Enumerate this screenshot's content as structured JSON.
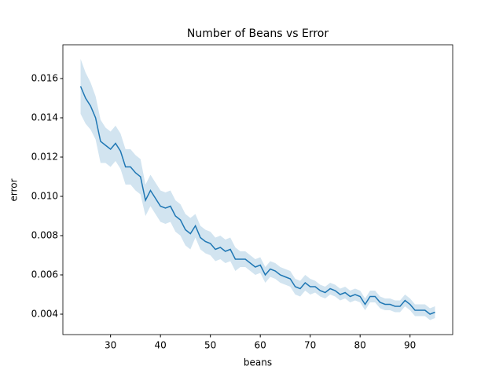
{
  "chart_data": {
    "type": "line",
    "title": "Number of Beans vs Error",
    "xlabel": "beans",
    "ylabel": "error",
    "x": [
      24,
      25,
      26,
      27,
      28,
      29,
      30,
      31,
      32,
      33,
      34,
      35,
      36,
      37,
      38,
      39,
      40,
      41,
      42,
      43,
      44,
      45,
      46,
      47,
      48,
      49,
      50,
      51,
      52,
      53,
      54,
      55,
      56,
      57,
      58,
      59,
      60,
      61,
      62,
      63,
      64,
      65,
      66,
      67,
      68,
      69,
      70,
      71,
      72,
      73,
      74,
      75,
      76,
      77,
      78,
      79,
      80,
      81,
      82,
      83,
      84,
      85,
      86,
      87,
      88,
      89,
      90,
      91,
      92,
      93,
      94,
      95
    ],
    "series": [
      {
        "color": "#1f77b4",
        "band_color": "#1f77b4",
        "values": [
          0.0156,
          0.015,
          0.0146,
          0.014,
          0.0128,
          0.0126,
          0.0124,
          0.0127,
          0.0123,
          0.0115,
          0.0115,
          0.0112,
          0.011,
          0.0098,
          0.0103,
          0.0099,
          0.0095,
          0.0094,
          0.0095,
          0.009,
          0.0088,
          0.0083,
          0.0081,
          0.0085,
          0.0079,
          0.0077,
          0.0076,
          0.0073,
          0.0074,
          0.0072,
          0.0073,
          0.0068,
          0.0068,
          0.0068,
          0.0066,
          0.0064,
          0.0065,
          0.006,
          0.0063,
          0.0062,
          0.006,
          0.0059,
          0.0058,
          0.0054,
          0.0053,
          0.0056,
          0.0054,
          0.0054,
          0.0052,
          0.0051,
          0.0053,
          0.0052,
          0.005,
          0.0051,
          0.0049,
          0.005,
          0.0049,
          0.0045,
          0.0049,
          0.0049,
          0.0046,
          0.0045,
          0.0045,
          0.0044,
          0.0044,
          0.0047,
          0.0045,
          0.0042,
          0.0042,
          0.0042,
          0.004,
          0.0041
        ],
        "lower": [
          0.0142,
          0.0137,
          0.0134,
          0.0129,
          0.0117,
          0.0117,
          0.0115,
          0.0118,
          0.0114,
          0.0106,
          0.0106,
          0.0103,
          0.0101,
          0.009,
          0.0095,
          0.0091,
          0.0087,
          0.0086,
          0.0087,
          0.0082,
          0.008,
          0.0075,
          0.0073,
          0.0079,
          0.0073,
          0.0071,
          0.007,
          0.0067,
          0.0068,
          0.0066,
          0.0067,
          0.0062,
          0.0064,
          0.0064,
          0.0062,
          0.006,
          0.0061,
          0.0056,
          0.0059,
          0.0058,
          0.0056,
          0.0055,
          0.0054,
          0.005,
          0.0049,
          0.0052,
          0.005,
          0.0051,
          0.0049,
          0.0048,
          0.005,
          0.0049,
          0.0047,
          0.0048,
          0.0046,
          0.0047,
          0.0046,
          0.0042,
          0.0046,
          0.0046,
          0.0043,
          0.0042,
          0.0042,
          0.0041,
          0.0041,
          0.0044,
          0.0042,
          0.0039,
          0.0039,
          0.0039,
          0.0037,
          0.0038
        ],
        "upper": [
          0.017,
          0.0163,
          0.0158,
          0.0151,
          0.0139,
          0.0135,
          0.0133,
          0.0136,
          0.0132,
          0.0124,
          0.0124,
          0.0121,
          0.0119,
          0.0106,
          0.0111,
          0.0107,
          0.0103,
          0.0102,
          0.0103,
          0.0098,
          0.0096,
          0.0091,
          0.0089,
          0.0091,
          0.0085,
          0.0083,
          0.0082,
          0.0079,
          0.008,
          0.0078,
          0.0079,
          0.0074,
          0.0072,
          0.0072,
          0.007,
          0.0068,
          0.0069,
          0.0064,
          0.0067,
          0.0066,
          0.0064,
          0.0063,
          0.0062,
          0.0058,
          0.0057,
          0.006,
          0.0058,
          0.0057,
          0.0055,
          0.0054,
          0.0056,
          0.0055,
          0.0053,
          0.0054,
          0.0052,
          0.0053,
          0.0052,
          0.0048,
          0.0052,
          0.0052,
          0.0049,
          0.0048,
          0.0048,
          0.0047,
          0.0047,
          0.005,
          0.0048,
          0.0045,
          0.0045,
          0.0045,
          0.0043,
          0.0044
        ]
      }
    ],
    "xlim": [
      20.45,
      98.55
    ],
    "xticks": [
      30,
      40,
      50,
      60,
      70,
      80,
      90
    ],
    "ylim": [
      0.00296,
      0.01772
    ],
    "yticks": [
      0.004,
      0.006,
      0.008,
      {
        "value": 0.01,
        "label": "0.010"
      },
      0.012,
      0.014,
      0.016
    ],
    "grid": false
  }
}
